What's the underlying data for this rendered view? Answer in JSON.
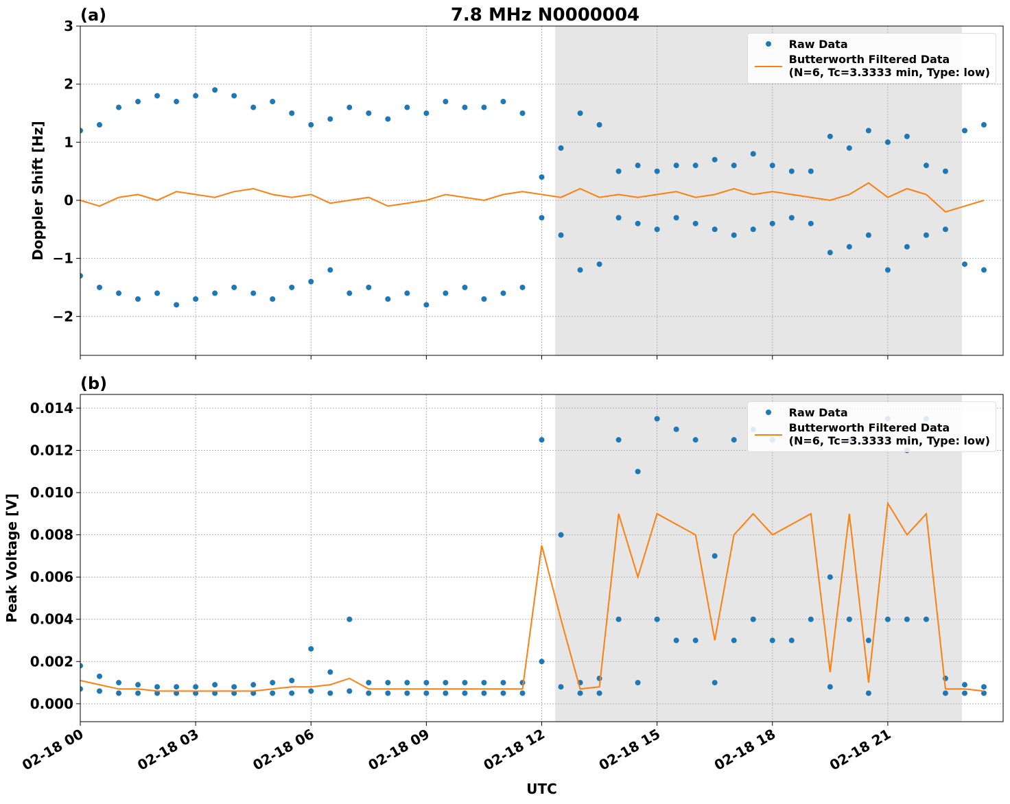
{
  "chart_data": [
    {
      "type": "line",
      "panel_label": "(a)",
      "title": "7.8 MHz N0000004",
      "ylabel": "Doppler Shift [Hz]",
      "xlim": [
        0,
        24
      ],
      "xticks": [
        {
          "value": 0,
          "label": "02-18 00"
        },
        {
          "value": 3,
          "label": "02-18 03"
        },
        {
          "value": 6,
          "label": "02-18 06"
        },
        {
          "value": 9,
          "label": "02-18 09"
        },
        {
          "value": 12,
          "label": "02-18 12"
        },
        {
          "value": 15,
          "label": "02-18 15"
        },
        {
          "value": 18,
          "label": "02-18 18"
        },
        {
          "value": 21,
          "label": "02-18 21"
        }
      ],
      "xtick_labels": false,
      "ylim": [
        -2.67,
        3.0
      ],
      "yticks": [
        {
          "value": -2,
          "label": "−2"
        },
        {
          "value": -1,
          "label": "−1"
        },
        0,
        1,
        2,
        3
      ],
      "grid": true,
      "legend": "upper right",
      "shaded_span": [
        12.35,
        22.93
      ],
      "series": [
        {
          "name": "Raw Data",
          "color": "#1f77b4",
          "mode": "markers",
          "x": [
            0,
            0.5,
            1,
            1.5,
            2,
            2.5,
            3,
            3.5,
            4,
            4.5,
            5,
            5.5,
            6,
            6.5,
            7,
            7.5,
            8,
            8.5,
            9,
            9.5,
            10,
            10.5,
            11,
            11.5,
            12,
            12.5,
            13,
            13.5,
            14,
            14.5,
            15,
            15.5,
            16,
            16.5,
            17,
            17.5,
            18,
            18.5,
            19,
            19.5,
            20,
            20.5,
            21,
            21.5,
            22,
            22.5,
            23,
            23.5,
            0,
            0.5,
            1,
            1.5,
            2,
            2.5,
            3,
            3.5,
            4,
            4.5,
            5,
            5.5,
            6,
            6.5,
            7,
            7.5,
            8,
            8.5,
            9,
            9.5,
            10,
            10.5,
            11,
            11.5,
            12,
            12.5,
            13,
            13.5,
            14,
            14.5,
            15,
            15.5,
            16,
            16.5,
            17,
            17.5,
            18,
            18.5,
            19,
            19.5,
            20,
            20.5,
            21,
            21.5,
            22,
            22.5,
            23,
            23.5
          ],
          "values": [
            1.2,
            1.3,
            1.6,
            1.7,
            1.8,
            1.7,
            1.8,
            1.9,
            1.8,
            1.6,
            1.7,
            1.5,
            1.3,
            1.4,
            1.6,
            1.5,
            1.4,
            1.6,
            1.5,
            1.7,
            1.6,
            1.6,
            1.7,
            1.5,
            0.4,
            0.9,
            1.5,
            1.3,
            0.5,
            0.6,
            0.5,
            0.6,
            0.6,
            0.7,
            0.6,
            0.8,
            0.6,
            0.5,
            0.5,
            1.1,
            0.9,
            1.2,
            1.0,
            1.1,
            0.6,
            0.5,
            1.2,
            1.3,
            -1.3,
            -1.5,
            -1.6,
            -1.7,
            -1.6,
            -1.8,
            -1.7,
            -1.6,
            -1.5,
            -1.6,
            -1.7,
            -1.5,
            -1.4,
            -1.2,
            -1.6,
            -1.5,
            -1.7,
            -1.6,
            -1.8,
            -1.6,
            -1.5,
            -1.7,
            -1.6,
            -1.5,
            -0.3,
            -0.6,
            -1.2,
            -1.1,
            -0.3,
            -0.4,
            -0.5,
            -0.3,
            -0.4,
            -0.5,
            -0.6,
            -0.5,
            -0.4,
            -0.3,
            -0.4,
            -0.9,
            -0.8,
            -0.6,
            -1.2,
            -0.8,
            -0.6,
            -0.5,
            -1.1,
            -1.2
          ]
        },
        {
          "name": "Butterworth Filtered Data\n(N=6, Tc=3.3333 min, Type: low)",
          "color": "#ff7f0e",
          "mode": "lines",
          "x": [
            0,
            0.5,
            1,
            1.5,
            2,
            2.5,
            3,
            3.5,
            4,
            4.5,
            5,
            5.5,
            6,
            6.5,
            7,
            7.5,
            8,
            8.5,
            9,
            9.5,
            10,
            10.5,
            11,
            11.5,
            12,
            12.5,
            13,
            13.5,
            14,
            14.5,
            15,
            15.5,
            16,
            16.5,
            17,
            17.5,
            18,
            18.5,
            19,
            19.5,
            20,
            20.5,
            21,
            21.5,
            22,
            22.5,
            23,
            23.5
          ],
          "values": [
            0.0,
            -0.1,
            0.05,
            0.1,
            0.0,
            0.15,
            0.1,
            0.05,
            0.15,
            0.2,
            0.1,
            0.05,
            0.1,
            -0.05,
            0.0,
            0.05,
            -0.1,
            -0.05,
            0.0,
            0.1,
            0.05,
            0.0,
            0.1,
            0.15,
            0.1,
            0.05,
            0.2,
            0.05,
            0.1,
            0.05,
            0.1,
            0.15,
            0.05,
            0.1,
            0.2,
            0.1,
            0.15,
            0.1,
            0.05,
            0.0,
            0.1,
            0.3,
            0.05,
            0.2,
            0.1,
            -0.2,
            -0.1,
            0.0
          ]
        }
      ]
    },
    {
      "type": "line",
      "panel_label": "(b)",
      "ylabel": "Peak Voltage [V]",
      "xlabel": "UTC",
      "xlim": [
        0,
        24
      ],
      "xticks": [
        {
          "value": 0,
          "label": "02-18 00"
        },
        {
          "value": 3,
          "label": "02-18 03"
        },
        {
          "value": 6,
          "label": "02-18 06"
        },
        {
          "value": 9,
          "label": "02-18 09"
        },
        {
          "value": 12,
          "label": "02-18 12"
        },
        {
          "value": 15,
          "label": "02-18 15"
        },
        {
          "value": 18,
          "label": "02-18 18"
        },
        {
          "value": 21,
          "label": "02-18 21"
        }
      ],
      "xtick_labels": true,
      "ylim": [
        -0.00085,
        0.01465
      ],
      "yticks": [
        {
          "value": 0,
          "label": "0.000"
        },
        {
          "value": 0.002,
          "label": "0.002"
        },
        {
          "value": 0.004,
          "label": "0.004"
        },
        {
          "value": 0.006,
          "label": "0.006"
        },
        {
          "value": 0.008,
          "label": "0.008"
        },
        {
          "value": 0.01,
          "label": "0.010"
        },
        {
          "value": 0.012,
          "label": "0.012"
        },
        {
          "value": 0.014,
          "label": "0.014"
        }
      ],
      "grid": true,
      "legend": "upper right",
      "shaded_span": [
        12.35,
        22.93
      ],
      "series": [
        {
          "name": "Raw Data",
          "color": "#1f77b4",
          "mode": "markers",
          "x": [
            0,
            0.5,
            1,
            1.5,
            2,
            2.5,
            3,
            3.5,
            4,
            4.5,
            5,
            5.5,
            6,
            6.5,
            7,
            7.5,
            8,
            8.5,
            9,
            9.5,
            10,
            10.5,
            11,
            11.5,
            12,
            12.5,
            13,
            13.5,
            14,
            14.5,
            15,
            15.5,
            16,
            16.5,
            17,
            17.5,
            18,
            18.5,
            19,
            19.5,
            20,
            20.5,
            21,
            21.5,
            22,
            22.5,
            23,
            23.5,
            0,
            0.5,
            1,
            1.5,
            2,
            2.5,
            3,
            3.5,
            4,
            4.5,
            5,
            5.5,
            6,
            6.5,
            7,
            7.5,
            8,
            8.5,
            9,
            9.5,
            10,
            10.5,
            11,
            11.5,
            12,
            12.5,
            13,
            13.5,
            14,
            14.5,
            15,
            15.5,
            16,
            16.5,
            17,
            17.5,
            18,
            18.5,
            19,
            19.5,
            20,
            20.5,
            21,
            21.5,
            22,
            22.5,
            23,
            23.5
          ],
          "values": [
            0.0018,
            0.0013,
            0.001,
            0.0009,
            0.0008,
            0.0008,
            0.0008,
            0.0009,
            0.0008,
            0.0009,
            0.001,
            0.0011,
            0.0026,
            0.0015,
            0.004,
            0.001,
            0.001,
            0.001,
            0.001,
            0.001,
            0.001,
            0.001,
            0.001,
            0.001,
            0.0125,
            0.008,
            0.001,
            0.0012,
            0.0125,
            0.011,
            0.0135,
            0.013,
            0.0125,
            0.007,
            0.0125,
            0.013,
            0.0125,
            0.0125,
            0.013,
            0.006,
            0.0125,
            0.003,
            0.0135,
            0.012,
            0.0135,
            0.0012,
            0.0009,
            0.0008,
            0.0007,
            0.0006,
            0.0005,
            0.0005,
            0.0005,
            0.0005,
            0.0005,
            0.0005,
            0.0005,
            0.0005,
            0.0005,
            0.0005,
            0.0006,
            0.0005,
            0.0006,
            0.0005,
            0.0005,
            0.0005,
            0.0005,
            0.0005,
            0.0005,
            0.0005,
            0.0005,
            0.0005,
            0.002,
            0.0008,
            0.0005,
            0.0005,
            0.004,
            0.001,
            0.004,
            0.003,
            0.003,
            0.001,
            0.003,
            0.004,
            0.003,
            0.003,
            0.004,
            0.0008,
            0.004,
            0.0005,
            0.004,
            0.004,
            0.004,
            0.0005,
            0.0005,
            0.0005
          ]
        },
        {
          "name": "Butterworth Filtered Data\n(N=6, Tc=3.3333 min, Type: low)",
          "color": "#ff7f0e",
          "mode": "lines",
          "x": [
            0,
            0.5,
            1,
            1.5,
            2,
            2.5,
            3,
            3.5,
            4,
            4.5,
            5,
            5.5,
            6,
            6.5,
            7,
            7.5,
            8,
            8.5,
            9,
            9.5,
            10,
            10.5,
            11,
            11.5,
            12,
            12.5,
            13,
            13.5,
            14,
            14.5,
            15,
            15.5,
            16,
            16.5,
            17,
            17.5,
            18,
            18.5,
            19,
            19.5,
            20,
            20.5,
            21,
            21.5,
            22,
            22.5,
            23,
            23.5
          ],
          "values": [
            0.0011,
            0.0009,
            0.0007,
            0.0007,
            0.0006,
            0.0006,
            0.0006,
            0.0006,
            0.0006,
            0.0006,
            0.0007,
            0.0008,
            0.0008,
            0.0009,
            0.0012,
            0.0007,
            0.0007,
            0.0007,
            0.0007,
            0.0007,
            0.0007,
            0.0007,
            0.0007,
            0.0007,
            0.0075,
            0.004,
            0.0007,
            0.0008,
            0.009,
            0.006,
            0.009,
            0.0085,
            0.008,
            0.003,
            0.008,
            0.009,
            0.008,
            0.0085,
            0.009,
            0.0015,
            0.009,
            0.001,
            0.0095,
            0.008,
            0.009,
            0.0007,
            0.0007,
            0.0006
          ]
        }
      ]
    }
  ]
}
